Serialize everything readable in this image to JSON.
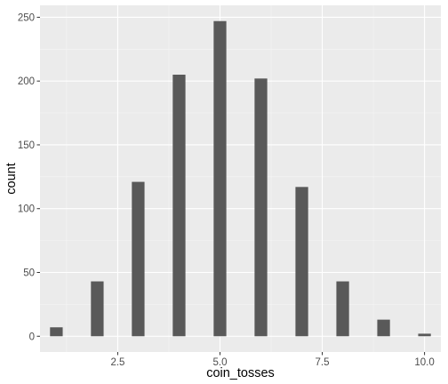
{
  "chart_data": {
    "type": "bar",
    "xlabel": "coin_tosses",
    "ylabel": "count",
    "x": [
      1,
      2,
      3,
      4,
      5,
      6,
      7,
      8,
      9,
      10
    ],
    "values": [
      7,
      43,
      121,
      205,
      247,
      202,
      117,
      43,
      13,
      2
    ],
    "xlim": [
      0.6,
      10.4
    ],
    "ylim": [
      -12.35,
      259.35
    ],
    "x_ticks": [
      2.5,
      5.0,
      7.5,
      10.0
    ],
    "x_tick_labels": [
      "2.5",
      "5.0",
      "7.5",
      "10.0"
    ],
    "y_ticks": [
      0,
      50,
      100,
      150,
      200,
      250
    ],
    "y_tick_labels": [
      "0",
      "50",
      "100",
      "150",
      "200",
      "250"
    ],
    "bar_width": 0.31,
    "grid": true,
    "legend": "none",
    "colors": {
      "bar": "#595959",
      "panel": "#ebebeb",
      "grid_major": "#ffffff",
      "grid_minor": "#f5f5f5",
      "tick_text": "#4d4d4d"
    }
  }
}
